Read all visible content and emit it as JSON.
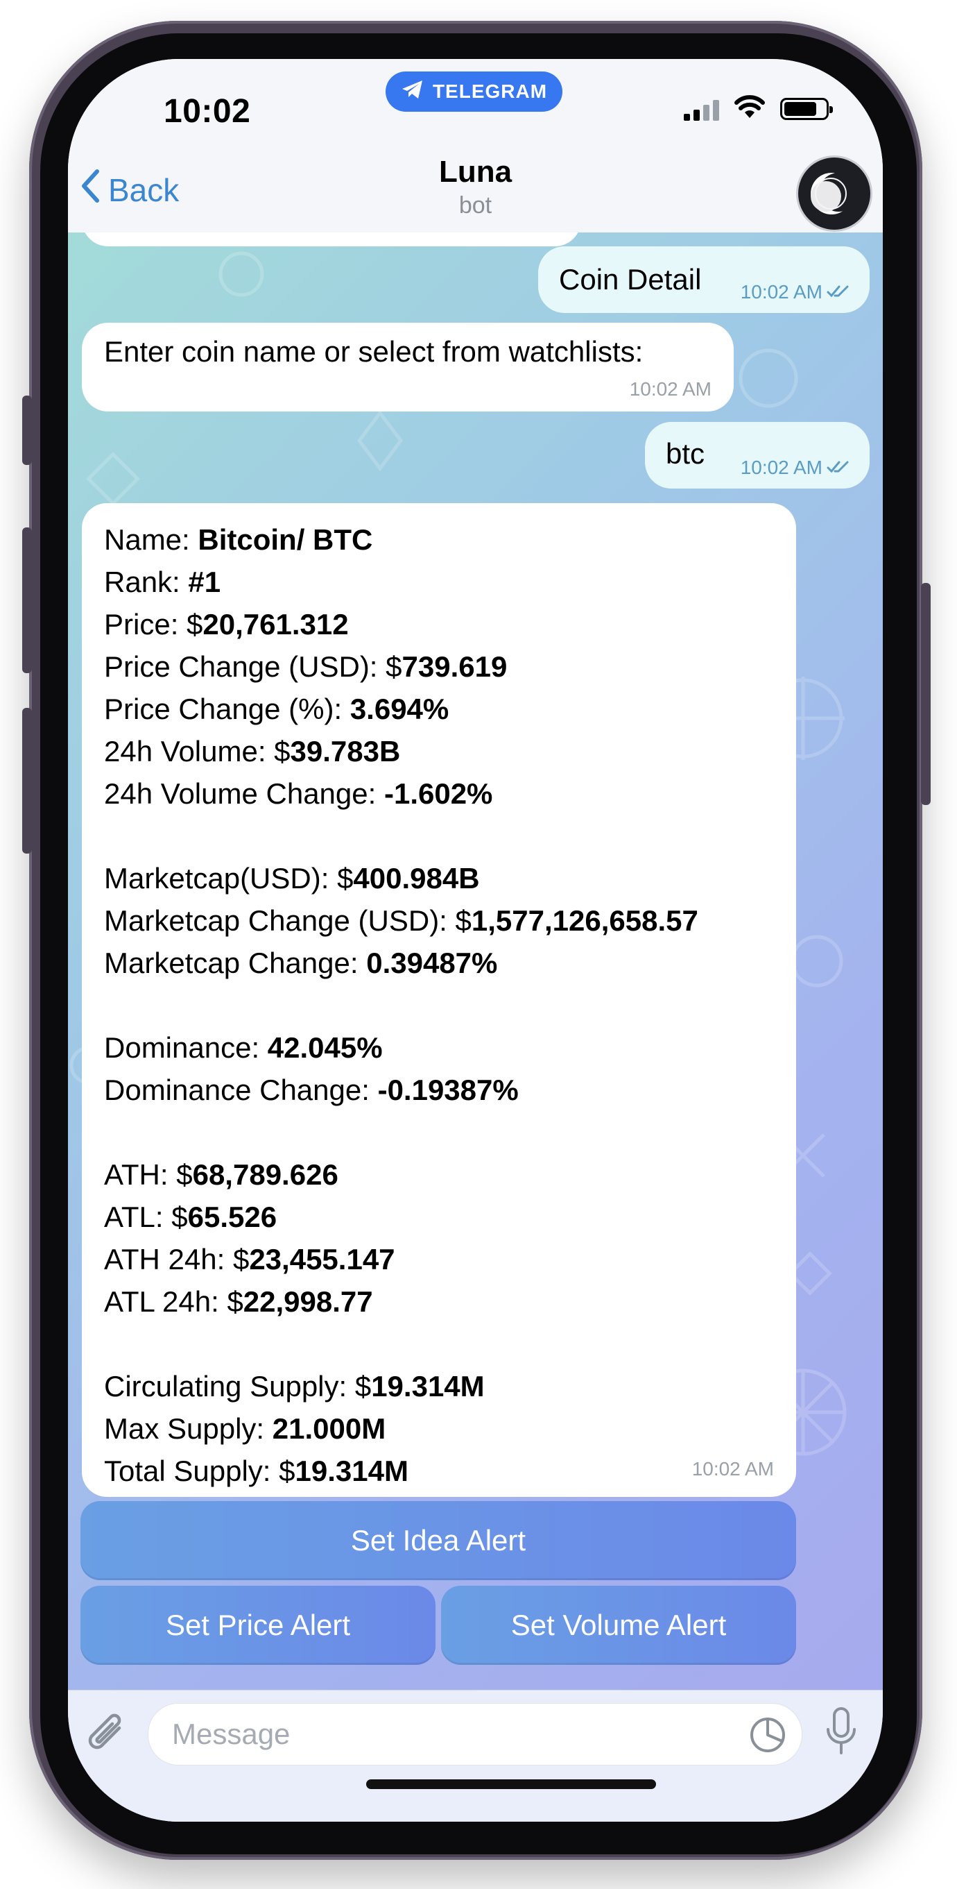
{
  "status_bar": {
    "time": "10:02",
    "app_pill": "TELEGRAM"
  },
  "header": {
    "back_label": "Back",
    "chat_name": "Luna",
    "chat_subtitle": "bot"
  },
  "messages": {
    "coin_detail": {
      "text": "Coin Detail",
      "time": "10:02 AM"
    },
    "prompt": {
      "text": "Enter coin name or select from watchlists:",
      "time": "10:02 AM"
    },
    "btc": {
      "text": "btc",
      "time": "10:02 AM"
    },
    "detail": {
      "time": "10:02 AM",
      "lines": [
        {
          "label": "Name: ",
          "prefix": "",
          "value": "Bitcoin/ BTC"
        },
        {
          "label": "Rank: ",
          "prefix": "",
          "value": "#1"
        },
        {
          "label": "Price: ",
          "prefix": "$",
          "value": "20,761.312"
        },
        {
          "label": "Price Change (USD): ",
          "prefix": "$",
          "value": "739.619"
        },
        {
          "label": "Price Change (%): ",
          "prefix": "",
          "value": "3.694%"
        },
        {
          "label": "24h Volume: ",
          "prefix": "$",
          "value": "39.783B"
        },
        {
          "label": "24h Volume Change: ",
          "prefix": "",
          "value": "-1.602%"
        },
        null,
        {
          "label": "Marketcap(USD): ",
          "prefix": "$",
          "value": "400.984B"
        },
        {
          "label": "Marketcap Change (USD): ",
          "prefix": "$",
          "value": "1,577,126,658.57"
        },
        {
          "label": "Marketcap Change: ",
          "prefix": "",
          "value": "0.39487%"
        },
        null,
        {
          "label": "Dominance: ",
          "prefix": "",
          "value": "42.045%"
        },
        {
          "label": "Dominance Change: ",
          "prefix": "",
          "value": "-0.19387%"
        },
        null,
        {
          "label": "ATH: ",
          "prefix": "$",
          "value": "68,789.626"
        },
        {
          "label": "ATL: ",
          "prefix": "$",
          "value": "65.526"
        },
        {
          "label": "ATH 24h: ",
          "prefix": "$",
          "value": "23,455.147"
        },
        {
          "label": "ATL 24h: ",
          "prefix": "$",
          "value": "22,998.77"
        },
        null,
        {
          "label": "Circulating Supply: ",
          "prefix": "$",
          "value": "19.314M"
        },
        {
          "label": "Max Supply: ",
          "prefix": "",
          "value": "21.000M"
        },
        {
          "label": "Total Supply: ",
          "prefix": "$",
          "value": "19.314M"
        }
      ]
    }
  },
  "keyboard": {
    "idea_alert": "Set Idea Alert",
    "price_alert": "Set Price Alert",
    "volume_alert": "Set Volume Alert"
  },
  "input": {
    "placeholder": "Message"
  },
  "icons": {
    "back": "chevron-left-icon",
    "attach": "paperclip-icon",
    "sticker": "sticker-icon",
    "mic": "microphone-icon",
    "telegram": "telegram-plane-icon"
  },
  "colors": {
    "accent": "#3a86d0",
    "pill": "#3777f0",
    "button": "#6b95e6"
  }
}
